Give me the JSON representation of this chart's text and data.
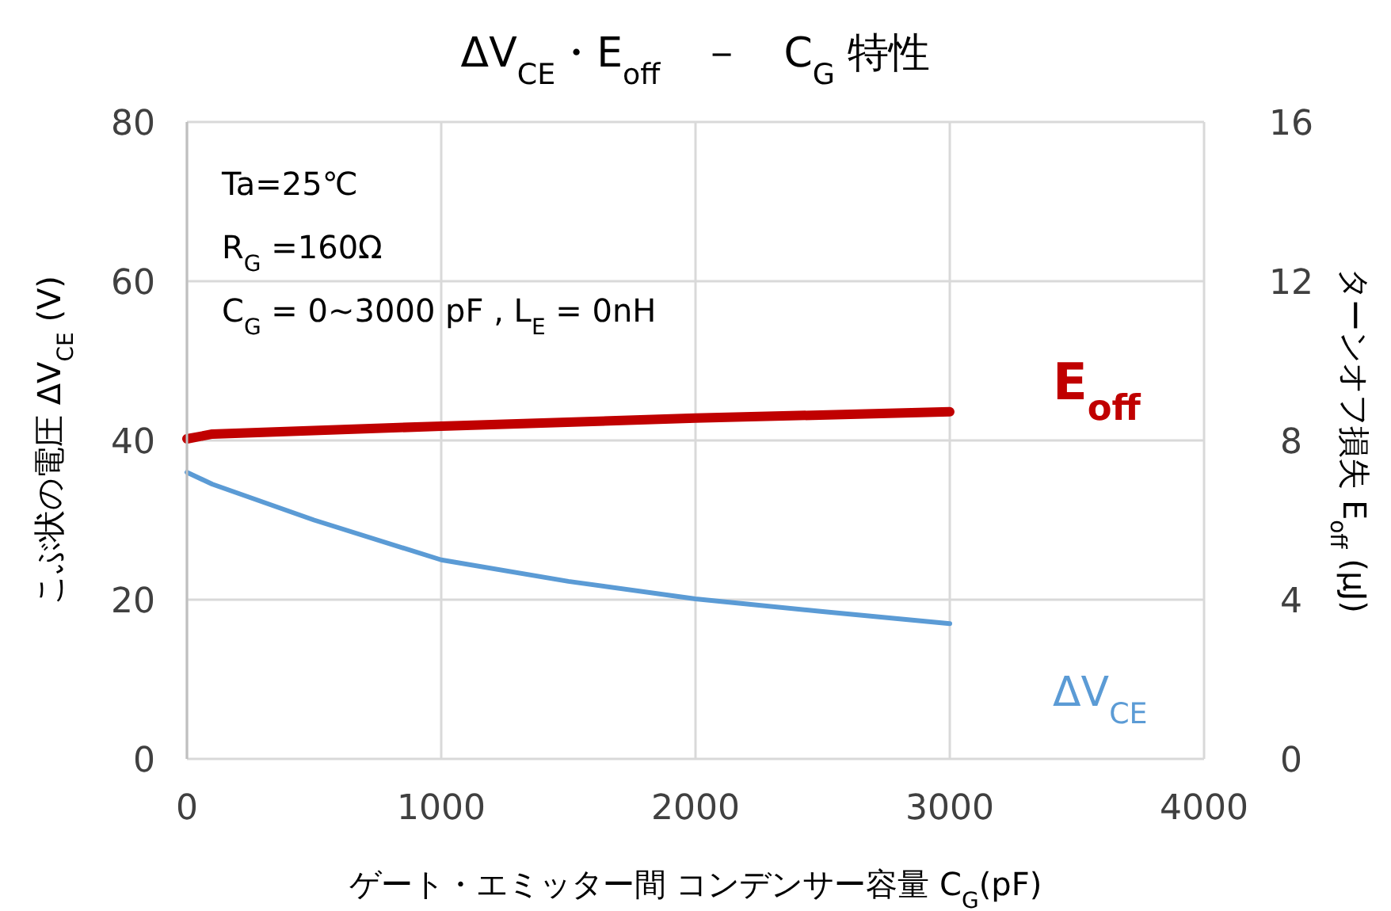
{
  "chart_data": {
    "type": "line",
    "title": "ΔV$_{CE}$・E$_{off}$　－　C$_{G}$ 特性",
    "xlabel": "ゲート・エミッター間 コンデンサー容量 C$_{G}$(pF)",
    "ylabel": "こぶ状の電圧 ΔV$_{CE}$ (V)",
    "y2label": "ターンオフ損失 E$_{off}$ (μJ)",
    "annotations": [
      "Ta=25℃",
      "R$_{G}$ =160Ω",
      "C$_{G}$ = 0~3000 pF , L$_{E}$ = 0nH"
    ],
    "series": [
      {
        "name": "E$_{off}$",
        "color": "#c00000",
        "axis": "y2",
        "x": [
          0,
          100,
          1000,
          2000,
          3000
        ],
        "values": [
          8.04,
          8.16,
          8.36,
          8.56,
          8.72
        ]
      },
      {
        "name": "ΔV$_{CE}$",
        "color": "#5b9bd5",
        "axis": "y",
        "x": [
          0,
          100,
          500,
          1000,
          1500,
          2000,
          2500,
          3000
        ],
        "values": [
          36,
          34.5,
          30,
          25,
          22.3,
          20.1,
          18.5,
          17
        ]
      }
    ],
    "xlim": [
      0,
      4000
    ],
    "xticks": [
      0,
      1000,
      2000,
      3000,
      4000
    ],
    "ylim": [
      0,
      80
    ],
    "yticks": [
      0,
      20,
      40,
      60,
      80
    ],
    "y2lim": [
      0,
      16
    ],
    "y2ticks": [
      0,
      4,
      8,
      12,
      16
    ],
    "grid": true,
    "legend": false,
    "marker": "none",
    "line_style": "solid"
  }
}
